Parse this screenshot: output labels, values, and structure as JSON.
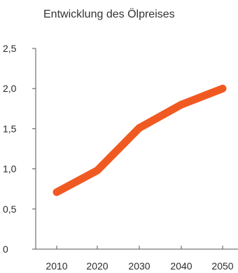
{
  "chart_data": {
    "type": "line",
    "title": "Entwicklung des Ölpreises",
    "xlabel": "",
    "ylabel": "",
    "x": [
      2010,
      2020,
      2030,
      2040,
      2050
    ],
    "x_tick_labels": [
      "2010",
      "2020",
      "2030",
      "2040",
      "2050"
    ],
    "y_ticks": [
      0,
      0.5,
      1.0,
      1.5,
      2.0,
      2.5
    ],
    "y_tick_labels": [
      "0",
      "0,5",
      "1,0",
      "1,5",
      "2,0",
      "2,5"
    ],
    "ylim": [
      0,
      2.5
    ],
    "grid": false,
    "series": [
      {
        "values": [
          0.71,
          0.98,
          1.51,
          1.8,
          2.0
        ],
        "color": "#f05a22"
      }
    ]
  }
}
